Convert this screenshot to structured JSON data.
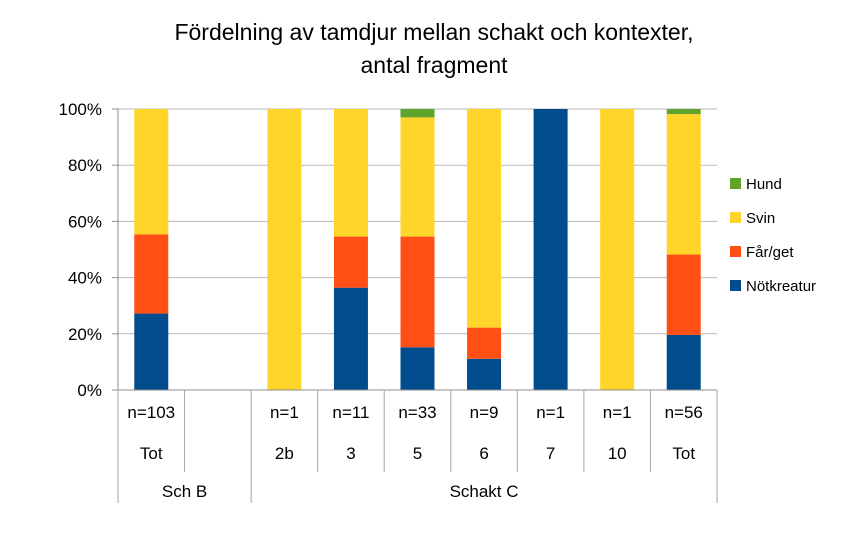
{
  "chart_data": {
    "type": "bar",
    "stacked": true,
    "percent": true,
    "title_line1": "Fördelning av tamdjur mellan schakt och kontexter,",
    "title_line2": "antal fragment",
    "ylim": [
      0,
      100
    ],
    "yticks": [
      "0%",
      "20%",
      "40%",
      "60%",
      "80%",
      "100%"
    ],
    "grid": true,
    "legend_position": "right",
    "categories": [
      {
        "n": "n=103",
        "label": "Tot"
      },
      {
        "n": "",
        "label": ""
      },
      {
        "n": "n=1",
        "label": "2b"
      },
      {
        "n": "n=11",
        "label": "3"
      },
      {
        "n": "n=33",
        "label": "5"
      },
      {
        "n": "n=9",
        "label": "6"
      },
      {
        "n": "n=1",
        "label": "7"
      },
      {
        "n": "n=1",
        "label": "10"
      },
      {
        "n": "n=56",
        "label": "Tot"
      }
    ],
    "groups": [
      {
        "label": "Sch B",
        "span": [
          0,
          1
        ]
      },
      {
        "label": "Schakt C",
        "span": [
          2,
          8
        ]
      }
    ],
    "series": [
      {
        "name": "Nötkreatur",
        "color": "#004C8C",
        "values": [
          27.2,
          null,
          0,
          36.4,
          15.2,
          11.1,
          100,
          0,
          19.6
        ]
      },
      {
        "name": "Får/get",
        "color": "#FF4F14",
        "values": [
          28.2,
          null,
          0,
          18.2,
          39.4,
          11.1,
          0,
          0,
          28.6
        ]
      },
      {
        "name": "Svin",
        "color": "#FFD529",
        "values": [
          44.6,
          null,
          100,
          45.4,
          42.4,
          77.8,
          0,
          100,
          50.0
        ]
      },
      {
        "name": "Hund",
        "color": "#5FA42A",
        "values": [
          0,
          null,
          0,
          0,
          3.0,
          0,
          0,
          0,
          1.8
        ]
      }
    ]
  }
}
